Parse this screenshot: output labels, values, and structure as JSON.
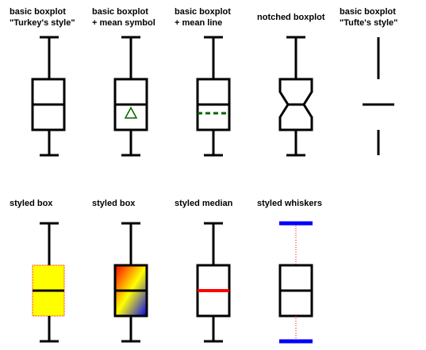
{
  "panels": [
    {
      "title": [
        "basic boxplot",
        "\"Turkey's style\""
      ]
    },
    {
      "title": [
        "basic boxplot",
        " + mean symbol"
      ]
    },
    {
      "title": [
        "basic boxplot",
        " + mean line"
      ]
    },
    {
      "title": [
        "notched boxplot"
      ]
    },
    {
      "title": [
        "basic boxplot",
        "\"Tufte's style\""
      ]
    },
    {
      "title": [
        "styled box"
      ]
    },
    {
      "title": [
        "styled box"
      ]
    },
    {
      "title": [
        "styled median"
      ]
    },
    {
      "title": [
        "styled whiskers"
      ]
    }
  ],
  "colors": {
    "stroke": "#000000",
    "mean": "#006400",
    "box_fill_yellow": "#ffff00",
    "box_border_red": "#ff0000",
    "median_red": "#ff0000",
    "whisker_blue": "#0000ff",
    "whisker_dotted_red": "#ff0000",
    "gradient": [
      "#ff0000",
      "#ffff00",
      "#0000ff"
    ]
  }
}
